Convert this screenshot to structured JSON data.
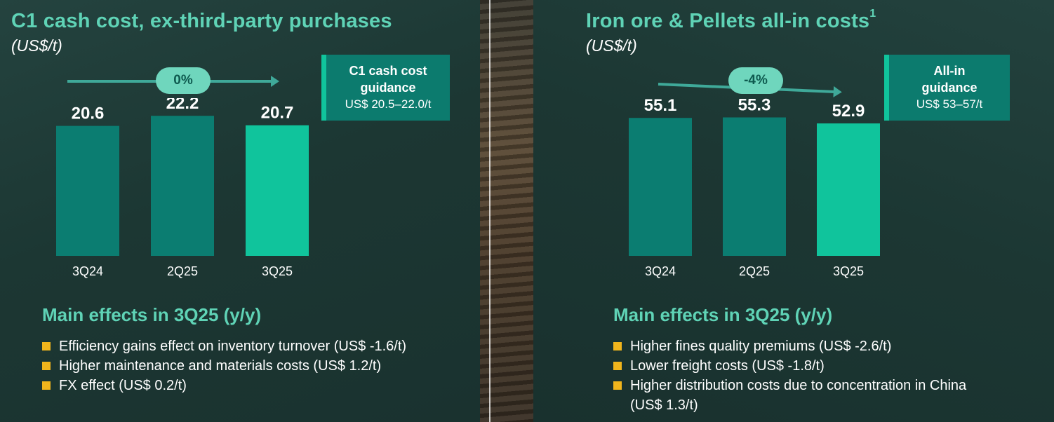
{
  "colors": {
    "accent": "#5fd3b6",
    "bar_dark": "#0b7d71",
    "bar_highlight": "#10c49c",
    "badge": "#6fd6bd",
    "bullet": "#f1b51c"
  },
  "left": {
    "title": "C1 cash cost, ex-third-party purchases",
    "subtitle": "(US$/t)",
    "trend": "0%",
    "guidance": {
      "title": "C1 cash cost guidance",
      "range": "US$ 20.5–22.0/t"
    },
    "effects_title": "Main effects in 3Q25 (y/y)",
    "effects": [
      "Efficiency gains effect on inventory turnover (US$ -1.6/t)",
      "Higher maintenance and materials costs (US$ 1.2/t)",
      "FX effect (US$ 0.2/t)"
    ]
  },
  "right": {
    "title": "Iron ore & Pellets all-in costs",
    "title_sup": "1",
    "subtitle": "(US$/t)",
    "trend": "-4%",
    "guidance": {
      "title": "All-in guidance",
      "range": "US$ 53–57/t"
    },
    "effects_title": "Main effects in 3Q25 (y/y)",
    "effects": [
      "Higher fines quality premiums (US$ -2.6/t)",
      "Lower freight costs (US$ -1.8/t)",
      "Higher distribution costs due to concentration in China (US$ 1.3/t)"
    ]
  },
  "chart_data": [
    {
      "type": "bar",
      "title": "C1 cash cost, ex-third-party purchases",
      "ylabel": "(US$/t)",
      "categories": [
        "3Q24",
        "2Q25",
        "3Q25"
      ],
      "values": [
        20.6,
        22.2,
        20.7
      ],
      "value_labels": [
        "20.6",
        "22.2",
        "20.7"
      ],
      "highlight_index": 2,
      "ylim": [
        0,
        25
      ],
      "grid": false,
      "annotation": "0%"
    },
    {
      "type": "bar",
      "title": "Iron ore & Pellets all-in costs",
      "ylabel": "(US$/t)",
      "categories": [
        "3Q24",
        "2Q25",
        "3Q25"
      ],
      "values": [
        55.1,
        55.3,
        52.9
      ],
      "value_labels": [
        "55.1",
        "55.3",
        "52.9"
      ],
      "highlight_index": 2,
      "ylim": [
        0,
        63
      ],
      "grid": false,
      "annotation": "-4%"
    }
  ]
}
